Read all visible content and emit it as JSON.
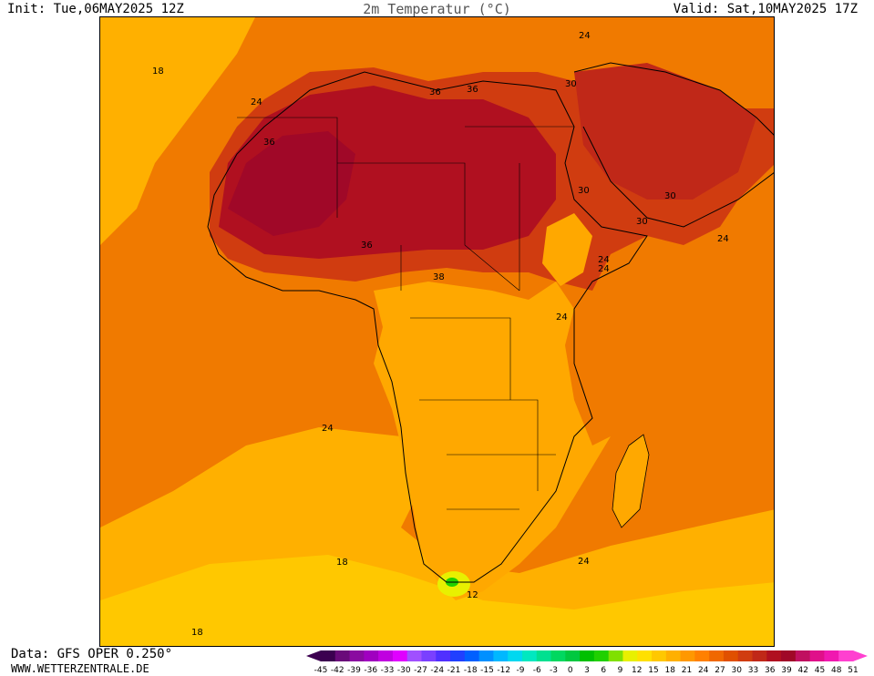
{
  "header": {
    "init": "Init: Tue,06MAY2025 12Z",
    "title": "2m Temperatur (°C)",
    "valid": "Valid: Sat,10MAY2025 17Z"
  },
  "footer": {
    "data_source": "Data: GFS OPER 0.250°",
    "website": "WWW.WETTERZENTRALE.DE"
  },
  "contour_labels": [
    "18",
    "24",
    "24",
    "36",
    "36",
    "36",
    "36",
    "30",
    "30",
    "30",
    "30",
    "24",
    "24",
    "38",
    "24",
    "24",
    "24",
    "18",
    "24",
    "12",
    "18"
  ],
  "colorbar": {
    "ticks": [
      "-45",
      "-42",
      "-39",
      "-36",
      "-33",
      "-30",
      "-27",
      "-24",
      "-21",
      "-18",
      "-15",
      "-12",
      "-9",
      "-6",
      "-3",
      "0",
      "3",
      "6",
      "9",
      "12",
      "15",
      "18",
      "21",
      "24",
      "27",
      "30",
      "33",
      "36",
      "39",
      "42",
      "45",
      "48",
      "51"
    ],
    "colors": [
      "#3c0050",
      "#6a0a7a",
      "#8a0aa0",
      "#a000c0",
      "#c000e0",
      "#e000ff",
      "#a050ff",
      "#7a40ff",
      "#5030ff",
      "#2040ff",
      "#0060ff",
      "#0090ff",
      "#00b8ff",
      "#00d8f0",
      "#00e8c0",
      "#00e090",
      "#00d860",
      "#00c840",
      "#00c000",
      "#20d000",
      "#80e000",
      "#e8f000",
      "#ffe000",
      "#ffc800",
      "#ffb000",
      "#ff9800",
      "#ff8000",
      "#f06800",
      "#e05000",
      "#d03c10",
      "#c02818",
      "#b01020",
      "#a00828",
      "#c01060",
      "#e0108a",
      "#f018b0",
      "#ff40d0"
    ],
    "arrow_left_color": "#3c0050",
    "arrow_right_color": "#ff40d0"
  },
  "map": {
    "ocean_color": "#f07a00",
    "cool_ocean_color": "#ffb000",
    "south_cool_color": "#ffc800",
    "savanna_color": "#ffa800",
    "hot_color": "#d03c10",
    "very_hot_color": "#b01020",
    "extreme_color": "#a00828",
    "border_color": "#000000",
    "contour_color": "#a0a0a0"
  }
}
